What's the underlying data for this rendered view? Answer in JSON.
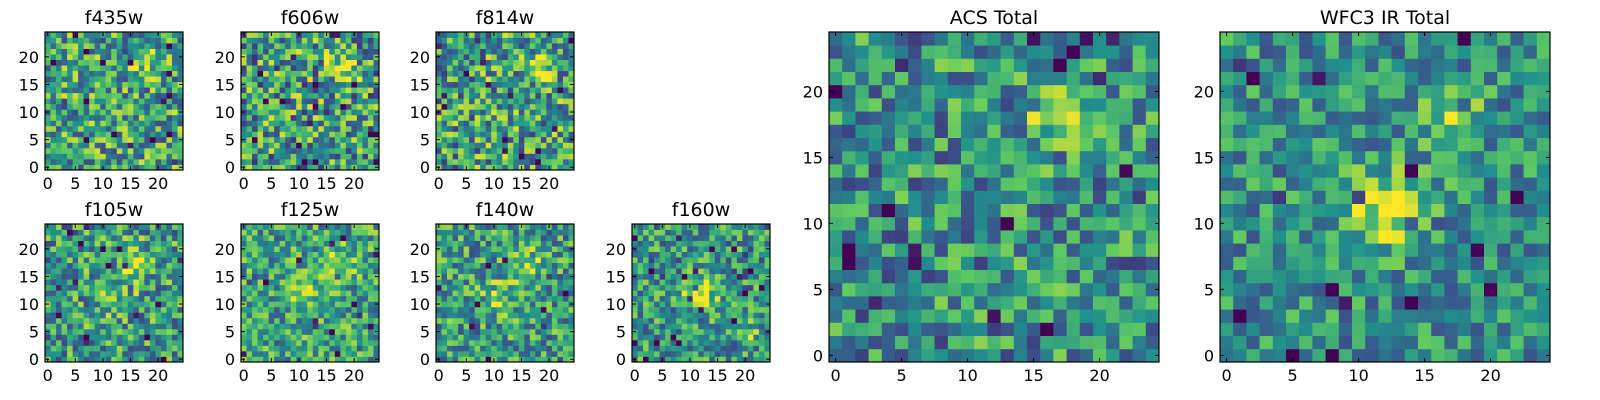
{
  "figure": {
    "type": "heatmap",
    "colormap": [
      "#440154",
      "#3b528b",
      "#21918c",
      "#5ec962",
      "#fde725"
    ],
    "panels": [
      {
        "id": "f435w",
        "title": "f435w",
        "xticks": [
          0,
          5,
          10,
          15,
          20
        ],
        "yticks": [
          0,
          5,
          10,
          15,
          20
        ],
        "xlim": [
          0,
          25
        ],
        "ylim": [
          0,
          25
        ],
        "grid": false,
        "blobs": [
          {
            "x": 18,
            "y": 19,
            "amp": 0.3,
            "sigma": 1.6
          }
        ],
        "base": 0.58,
        "noise": 0.36
      },
      {
        "id": "f606w",
        "title": "f606w",
        "xticks": [
          0,
          5,
          10,
          15,
          20
        ],
        "yticks": [
          0,
          5,
          10,
          15,
          20
        ],
        "xlim": [
          0,
          25
        ],
        "ylim": [
          0,
          25
        ],
        "grid": false,
        "blobs": [
          {
            "x": 18,
            "y": 18,
            "amp": 0.35,
            "sigma": 1.8
          }
        ],
        "base": 0.55,
        "noise": 0.4
      },
      {
        "id": "f814w",
        "title": "f814w",
        "xticks": [
          0,
          5,
          10,
          15,
          20
        ],
        "yticks": [
          0,
          5,
          10,
          15,
          20
        ],
        "xlim": [
          0,
          25
        ],
        "ylim": [
          0,
          25
        ],
        "grid": false,
        "blobs": [
          {
            "x": 18,
            "y": 18,
            "amp": 0.32,
            "sigma": 1.8
          }
        ],
        "base": 0.57,
        "noise": 0.38
      },
      {
        "id": "f105w",
        "title": "f105w",
        "xticks": [
          0,
          5,
          10,
          15,
          20
        ],
        "yticks": [
          0,
          5,
          10,
          15,
          20
        ],
        "xlim": [
          0,
          25
        ],
        "ylim": [
          0,
          25
        ],
        "grid": false,
        "blobs": [
          {
            "x": 16,
            "y": 18,
            "amp": 0.25,
            "sigma": 2.0
          },
          {
            "x": 12,
            "y": 12,
            "amp": 0.2,
            "sigma": 2.5
          }
        ],
        "base": 0.55,
        "noise": 0.34
      },
      {
        "id": "f125w",
        "title": "f125w",
        "xticks": [
          0,
          5,
          10,
          15,
          20
        ],
        "yticks": [
          0,
          5,
          10,
          15,
          20
        ],
        "xlim": [
          0,
          25
        ],
        "ylim": [
          0,
          25
        ],
        "grid": false,
        "blobs": [
          {
            "x": 17,
            "y": 18,
            "amp": 0.25,
            "sigma": 2.0
          },
          {
            "x": 12,
            "y": 12,
            "amp": 0.2,
            "sigma": 2.5
          }
        ],
        "base": 0.58,
        "noise": 0.3
      },
      {
        "id": "f140w",
        "title": "f140w",
        "xticks": [
          0,
          5,
          10,
          15,
          20
        ],
        "yticks": [
          0,
          5,
          10,
          15,
          20
        ],
        "xlim": [
          0,
          25
        ],
        "ylim": [
          0,
          25
        ],
        "grid": false,
        "blobs": [
          {
            "x": 16,
            "y": 17,
            "amp": 0.3,
            "sigma": 2.0
          },
          {
            "x": 11,
            "y": 11,
            "amp": 0.28,
            "sigma": 2.0
          }
        ],
        "base": 0.55,
        "noise": 0.32
      },
      {
        "id": "f160w",
        "title": "f160w",
        "xticks": [
          0,
          5,
          10,
          15,
          20
        ],
        "yticks": [
          0,
          5,
          10,
          15,
          20
        ],
        "xlim": [
          0,
          25
        ],
        "ylim": [
          0,
          25
        ],
        "grid": false,
        "blobs": [
          {
            "x": 12,
            "y": 12,
            "amp": 0.45,
            "sigma": 2.0
          },
          {
            "x": 21,
            "y": 5,
            "amp": 0.2,
            "sigma": 1.6
          }
        ],
        "base": 0.52,
        "noise": 0.32
      },
      {
        "id": "acs-total",
        "title": "ACS Total",
        "xticks": [
          0,
          5,
          10,
          15,
          20
        ],
        "yticks": [
          0,
          5,
          10,
          15,
          20
        ],
        "xlim": [
          0,
          25
        ],
        "ylim": [
          0,
          25
        ],
        "grid": false,
        "blobs": [
          {
            "x": 17,
            "y": 18,
            "amp": 0.45,
            "sigma": 1.5
          }
        ],
        "base": 0.5,
        "noise": 0.32
      },
      {
        "id": "wfc3-ir-total",
        "title": "WFC3 IR Total",
        "xticks": [
          0,
          5,
          10,
          15,
          20
        ],
        "yticks": [
          0,
          5,
          10,
          15,
          20
        ],
        "xlim": [
          0,
          25
        ],
        "ylim": [
          0,
          25
        ],
        "grid": false,
        "blobs": [
          {
            "x": 17,
            "y": 18,
            "amp": 0.35,
            "sigma": 1.6
          },
          {
            "x": 12,
            "y": 11,
            "amp": 0.4,
            "sigma": 2.2
          }
        ],
        "base": 0.5,
        "noise": 0.26
      }
    ]
  }
}
